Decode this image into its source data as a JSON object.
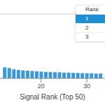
{
  "chart_data": {
    "type": "bar",
    "x_label": "Signal Rank (Top 50)",
    "x": [
      12,
      13,
      14,
      15,
      16,
      17,
      18,
      19,
      20,
      21,
      22,
      23,
      24,
      25,
      26,
      27,
      28,
      29,
      30,
      31,
      32,
      33
    ],
    "values": [
      17,
      16,
      14,
      13,
      12.5,
      12,
      11.5,
      11,
      10.5,
      10,
      10,
      9.5,
      9.5,
      9,
      9,
      8.5,
      8.5,
      8,
      8,
      8,
      7.5,
      7.5
    ],
    "color": "#3a9ad9",
    "xlim": [
      11,
      34
    ],
    "xticks": [
      20,
      30
    ],
    "ylim": [
      0,
      100
    ],
    "tick_labels": "x",
    "grid": false
  },
  "table": {
    "header": [
      "Rank"
    ],
    "rows": [
      [
        "1"
      ],
      [
        "2"
      ],
      [
        "3"
      ]
    ]
  }
}
